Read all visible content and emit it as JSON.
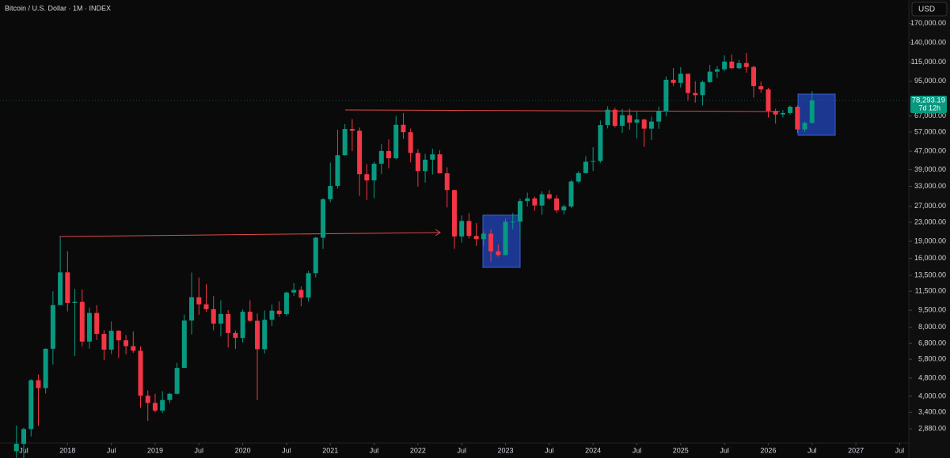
{
  "chart_data": {
    "type": "candlestick",
    "title": "Bitcoin / U.S. Dollar · 1M · INDEX",
    "currency": "USD",
    "log_scale": true,
    "grid": false,
    "up_color": "#089981",
    "down_color": "#f23645",
    "x": [
      "2017-06",
      "2017-07",
      "2017-08",
      "2017-09",
      "2017-10",
      "2017-11",
      "2017-12",
      "2018-01",
      "2018-02",
      "2018-03",
      "2018-04",
      "2018-05",
      "2018-06",
      "2018-07",
      "2018-08",
      "2018-09",
      "2018-10",
      "2018-11",
      "2018-12",
      "2019-01",
      "2019-02",
      "2019-03",
      "2019-04",
      "2019-05",
      "2019-06",
      "2019-07",
      "2019-08",
      "2019-09",
      "2019-10",
      "2019-11",
      "2019-12",
      "2020-01",
      "2020-02",
      "2020-03",
      "2020-04",
      "2020-05",
      "2020-06",
      "2020-07",
      "2020-08",
      "2020-09",
      "2020-10",
      "2020-11",
      "2020-12",
      "2021-01",
      "2021-02",
      "2021-03",
      "2021-04",
      "2021-05",
      "2021-06",
      "2021-07",
      "2021-08",
      "2021-09",
      "2021-10",
      "2021-11",
      "2021-12",
      "2022-01",
      "2022-02",
      "2022-03",
      "2022-04",
      "2022-05",
      "2022-06",
      "2022-07",
      "2022-08",
      "2022-09",
      "2022-10",
      "2022-11",
      "2022-12",
      "2023-01",
      "2023-02",
      "2023-03",
      "2023-04",
      "2023-05",
      "2023-06",
      "2023-07",
      "2023-08",
      "2023-09",
      "2023-10",
      "2023-11",
      "2023-12",
      "2024-01",
      "2024-02",
      "2024-03",
      "2024-04",
      "2024-05",
      "2024-06",
      "2024-07",
      "2024-08",
      "2024-09",
      "2024-10",
      "2024-11",
      "2024-12",
      "2025-01",
      "2025-02",
      "2025-03",
      "2025-04",
      "2025-05",
      "2025-06",
      "2025-07",
      "2025-08",
      "2025-09",
      "2025-10",
      "2025-11",
      "2025-12",
      "2026-01",
      "2026-02",
      "2026-03",
      "2026-04",
      "2026-05",
      "2026-06",
      "2026-07"
    ],
    "ohlc": [
      [
        2300,
        2980,
        2100,
        2480
      ],
      [
        2480,
        2920,
        1840,
        2875
      ],
      [
        2875,
        4750,
        2670,
        4700
      ],
      [
        4700,
        4980,
        2970,
        4340
      ],
      [
        4340,
        6470,
        4110,
        6450
      ],
      [
        6450,
        11500,
        5500,
        10000
      ],
      [
        10000,
        19800,
        10900,
        13900
      ],
      [
        13900,
        17200,
        9400,
        10220
      ],
      [
        10220,
        11780,
        6000,
        10330
      ],
      [
        10330,
        11700,
        6600,
        6930
      ],
      [
        6930,
        9750,
        6450,
        9240
      ],
      [
        9240,
        9990,
        7040,
        7490
      ],
      [
        7490,
        7770,
        5750,
        6390
      ],
      [
        6390,
        8490,
        6110,
        7730
      ],
      [
        7730,
        7760,
        5880,
        7020
      ],
      [
        7020,
        7410,
        6100,
        6620
      ],
      [
        6620,
        7680,
        6180,
        6320
      ],
      [
        6320,
        6600,
        3560,
        4020
      ],
      [
        4020,
        4240,
        3120,
        3740
      ],
      [
        3740,
        4100,
        3400,
        3460
      ],
      [
        3460,
        4210,
        3380,
        3850
      ],
      [
        3850,
        4140,
        3730,
        4100
      ],
      [
        4100,
        5600,
        4080,
        5320
      ],
      [
        5320,
        9090,
        5320,
        8560
      ],
      [
        8560,
        13880,
        7440,
        10820
      ],
      [
        10820,
        13200,
        9080,
        10080
      ],
      [
        10080,
        12330,
        9330,
        9600
      ],
      [
        9600,
        10950,
        7760,
        8300
      ],
      [
        8300,
        10500,
        7300,
        9150
      ],
      [
        9150,
        9510,
        6530,
        7560
      ],
      [
        7560,
        7750,
        6430,
        7190
      ],
      [
        7190,
        9580,
        6860,
        9350
      ],
      [
        9350,
        10500,
        8460,
        8540
      ],
      [
        8540,
        9190,
        3850,
        6420
      ],
      [
        6420,
        9470,
        6150,
        8630
      ],
      [
        8630,
        10080,
        8110,
        9460
      ],
      [
        9460,
        10390,
        8900,
        9140
      ],
      [
        9140,
        11450,
        8970,
        11350
      ],
      [
        11350,
        12470,
        10970,
        11650
      ],
      [
        11650,
        12070,
        9880,
        10780
      ],
      [
        10780,
        14100,
        10370,
        13790
      ],
      [
        13790,
        19860,
        13220,
        19700
      ],
      [
        19700,
        29300,
        17600,
        28990
      ],
      [
        28990,
        41950,
        28130,
        33140
      ],
      [
        33140,
        58350,
        32300,
        45140
      ],
      [
        45140,
        61780,
        45000,
        58790
      ],
      [
        58790,
        64900,
        47040,
        57750
      ],
      [
        57750,
        59600,
        30000,
        37300
      ],
      [
        37300,
        41300,
        28800,
        35040
      ],
      [
        35040,
        42320,
        29280,
        41460
      ],
      [
        41460,
        50500,
        37330,
        47100
      ],
      [
        47100,
        52950,
        39600,
        43790
      ],
      [
        43790,
        67000,
        43300,
        61300
      ],
      [
        61300,
        69000,
        53250,
        56900
      ],
      [
        56900,
        59050,
        42000,
        46200
      ],
      [
        46200,
        47990,
        32950,
        38480
      ],
      [
        38480,
        45800,
        34300,
        43160
      ],
      [
        43160,
        48190,
        37200,
        45540
      ],
      [
        45540,
        47440,
        37600,
        37640
      ],
      [
        37640,
        40000,
        26700,
        31800
      ],
      [
        31800,
        31950,
        17600,
        19940
      ],
      [
        19940,
        24650,
        18780,
        23300
      ],
      [
        23300,
        25200,
        19540,
        20050
      ],
      [
        20050,
        22800,
        18150,
        19420
      ],
      [
        19420,
        21000,
        18200,
        20500
      ],
      [
        20500,
        21480,
        15480,
        17170
      ],
      [
        17170,
        18400,
        16270,
        16540
      ],
      [
        16540,
        23950,
        16500,
        23130
      ],
      [
        23130,
        25250,
        21400,
        23150
      ],
      [
        23150,
        29200,
        19550,
        28480
      ],
      [
        28480,
        31000,
        26940,
        29250
      ],
      [
        29250,
        29820,
        25810,
        27220
      ],
      [
        27220,
        31390,
        24800,
        30480
      ],
      [
        30480,
        31800,
        28860,
        29230
      ],
      [
        29230,
        30200,
        25300,
        25940
      ],
      [
        25940,
        27500,
        24900,
        26960
      ],
      [
        26960,
        35200,
        26560,
        34650
      ],
      [
        34650,
        38450,
        34100,
        37720
      ],
      [
        37720,
        44700,
        37600,
        42280
      ],
      [
        42280,
        48970,
        38500,
        42580
      ],
      [
        42580,
        64000,
        41880,
        61130
      ],
      [
        61130,
        73800,
        59100,
        71330
      ],
      [
        71330,
        72800,
        59600,
        60640
      ],
      [
        60640,
        71950,
        56550,
        67490
      ],
      [
        67490,
        72000,
        58400,
        62680
      ],
      [
        62680,
        70000,
        53500,
        64620
      ],
      [
        64620,
        65100,
        49050,
        58970
      ],
      [
        58970,
        66500,
        52550,
        63330
      ],
      [
        63330,
        73600,
        58900,
        70220
      ],
      [
        70220,
        99650,
        66800,
        96400
      ],
      [
        96400,
        108300,
        90500,
        93430
      ],
      [
        93430,
        109350,
        89200,
        102400
      ],
      [
        102400,
        102500,
        78200,
        84370
      ],
      [
        84370,
        95000,
        76600,
        82550
      ],
      [
        82550,
        95760,
        74400,
        94200
      ],
      [
        94200,
        111900,
        93400,
        104600
      ],
      [
        104600,
        110500,
        98200,
        107100
      ],
      [
        107100,
        123200,
        105300,
        115750
      ],
      [
        115750,
        124400,
        107300,
        108250
      ],
      [
        108250,
        117900,
        107300,
        114050
      ],
      [
        114050,
        126200,
        103500,
        109600
      ],
      [
        109600,
        111200,
        80600,
        90400
      ],
      [
        90400,
        94600,
        84500,
        87500
      ],
      [
        87500,
        89000,
        66000,
        70500
      ],
      [
        70500,
        72000,
        62000,
        68000
      ],
      [
        68000,
        71000,
        66000,
        69000
      ],
      [
        69000,
        74500,
        68000,
        73500
      ],
      [
        73500,
        74500,
        56500,
        58500
      ],
      [
        58500,
        63500,
        57000,
        62500
      ],
      [
        62500,
        86000,
        62000,
        78293.19
      ]
    ],
    "last_price": {
      "value": 78293.19,
      "label": "78,293.19"
    },
    "countdown": "7d 12h",
    "ylim": [
      2500,
      215000
    ],
    "yticks": [
      {
        "value": 170000,
        "label": "170,000.00"
      },
      {
        "value": 140000,
        "label": "140,000.00"
      },
      {
        "value": 115000,
        "label": "115,000.00"
      },
      {
        "value": 95000,
        "label": "95,000.00"
      },
      {
        "value": 67000,
        "label": "67,000.00"
      },
      {
        "value": 57000,
        "label": "57,000.00"
      },
      {
        "value": 47000,
        "label": "47,000.00"
      },
      {
        "value": 39000,
        "label": "39,000.00"
      },
      {
        "value": 33000,
        "label": "33,000.00"
      },
      {
        "value": 27000,
        "label": "27,000.00"
      },
      {
        "value": 23000,
        "label": "23,000.00"
      },
      {
        "value": 19000,
        "label": "19,000.00"
      },
      {
        "value": 16000,
        "label": "16,000.00"
      },
      {
        "value": 13500,
        "label": "13,500.00"
      },
      {
        "value": 11500,
        "label": "11,500.00"
      },
      {
        "value": 9500,
        "label": "9,500.00"
      },
      {
        "value": 8000,
        "label": "8,000.00"
      },
      {
        "value": 6800,
        "label": "6,800.00"
      },
      {
        "value": 5800,
        "label": "5,800.00"
      },
      {
        "value": 4800,
        "label": "4,800.00"
      },
      {
        "value": 4000,
        "label": "4,000.00"
      },
      {
        "value": 3400,
        "label": "3,400.00"
      },
      {
        "value": 2880,
        "label": "2,880.00"
      }
    ],
    "xticks": [
      {
        "value": "2017-07",
        "label": "Jul"
      },
      {
        "value": "2018-01",
        "label": "2018"
      },
      {
        "value": "2018-07",
        "label": "Jul"
      },
      {
        "value": "2019-01",
        "label": "2019"
      },
      {
        "value": "2019-07",
        "label": "Jul"
      },
      {
        "value": "2020-01",
        "label": "2020"
      },
      {
        "value": "2020-07",
        "label": "Jul"
      },
      {
        "value": "2021-01",
        "label": "2021"
      },
      {
        "value": "2021-07",
        "label": "Jul"
      },
      {
        "value": "2022-01",
        "label": "2022"
      },
      {
        "value": "2022-07",
        "label": "Jul"
      },
      {
        "value": "2023-01",
        "label": "2023"
      },
      {
        "value": "2023-07",
        "label": "Jul"
      },
      {
        "value": "2024-01",
        "label": "2024"
      },
      {
        "value": "2024-07",
        "label": "Jul"
      },
      {
        "value": "2025-01",
        "label": "2025"
      },
      {
        "value": "2025-07",
        "label": "Jul"
      },
      {
        "value": "2026-01",
        "label": "2026"
      },
      {
        "value": "2026-07",
        "label": "Jul"
      },
      {
        "value": "2027-01",
        "label": "2027"
      },
      {
        "value": "2027-07",
        "label": "Jul"
      }
    ]
  }
}
